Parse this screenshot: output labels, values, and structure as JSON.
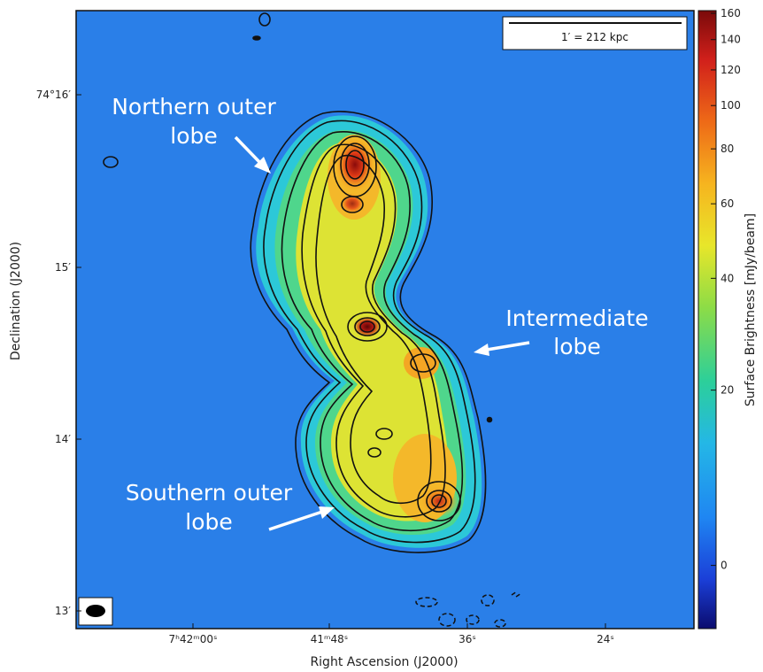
{
  "axes": {
    "x_title": "Right Ascension (J2000)",
    "y_title": "Declination (J2000)",
    "x_ticks": [
      {
        "label": "7ʰ42ᵐ00ˢ"
      },
      {
        "label": "41ᵐ48ˢ"
      },
      {
        "label": "36ˢ"
      },
      {
        "label": "24ˢ"
      }
    ],
    "y_ticks": [
      {
        "label": "74°16′"
      },
      {
        "label": "15′"
      },
      {
        "label": "14′"
      },
      {
        "label": "13′"
      }
    ]
  },
  "scalebar": {
    "text": "1′ = 212 kpc"
  },
  "annotations": {
    "north": [
      "Northern outer",
      "lobe"
    ],
    "intermediate": [
      "Intermediate",
      "lobe"
    ],
    "south": [
      "Southern outer",
      "lobe"
    ]
  },
  "colorbar": {
    "title": "Surface Brightness [mJy/beam]",
    "ticks": [
      {
        "label": "160",
        "value": 160
      },
      {
        "label": "140",
        "value": 140
      },
      {
        "label": "120",
        "value": 120
      },
      {
        "label": "100",
        "value": 100
      },
      {
        "label": "80",
        "value": 80
      },
      {
        "label": "60",
        "value": 60
      },
      {
        "label": "40",
        "value": 40
      },
      {
        "label": "20",
        "value": 20
      },
      {
        "label": "0",
        "value": 0
      }
    ],
    "colors": [
      "#0b0c6e",
      "#1b3fd8",
      "#1f86f2",
      "#24b7e6",
      "#2ccf9a",
      "#8ddc46",
      "#e8e62a",
      "#f6b41f",
      "#ee6a17",
      "#d1201b",
      "#7a0a0a"
    ]
  }
}
